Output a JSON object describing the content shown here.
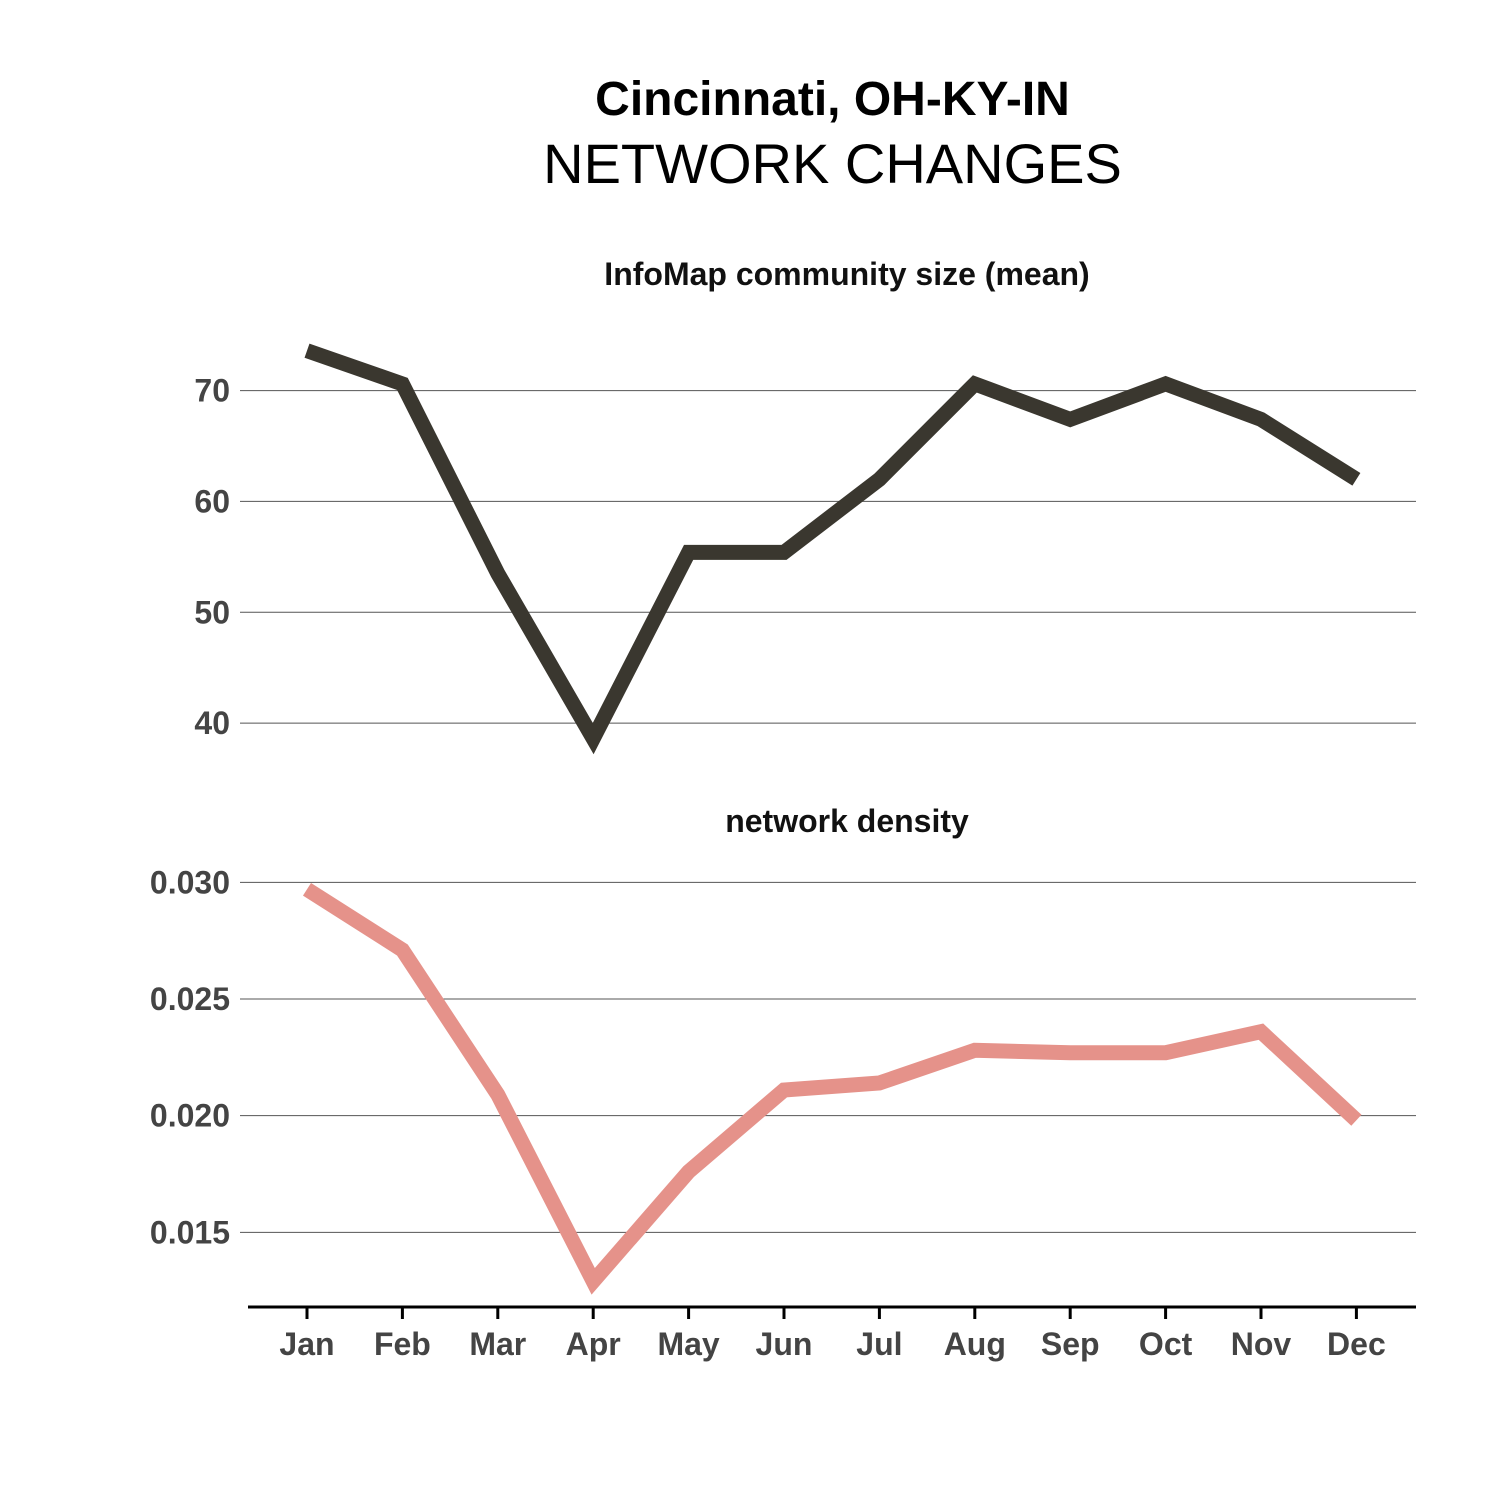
{
  "header": {
    "title": "Cincinnati, OH-KY-IN",
    "subtitle": "NETWORK CHANGES"
  },
  "chart_data": [
    {
      "type": "line",
      "title": "InfoMap community size (mean)",
      "categories": [
        "Jan",
        "Feb",
        "Mar",
        "Apr",
        "May",
        "Jun",
        "Jul",
        "Aug",
        "Sep",
        "Oct",
        "Nov",
        "Dec"
      ],
      "series": [
        {
          "values": [
            73.6,
            70.6,
            53.5,
            38.6,
            55.4,
            55.4,
            62.0,
            70.6,
            67.4,
            70.6,
            67.4,
            62.0
          ],
          "color": "#3a372f"
        }
      ],
      "yticks": [
        40,
        50,
        60,
        70
      ],
      "ylim": [
        35.5,
        77
      ],
      "grid": true
    },
    {
      "type": "line",
      "title": "network density",
      "categories": [
        "Jan",
        "Feb",
        "Mar",
        "Apr",
        "May",
        "Jun",
        "Jul",
        "Aug",
        "Sep",
        "Oct",
        "Nov",
        "Dec"
      ],
      "series": [
        {
          "values": [
            0.0297,
            0.0271,
            0.0209,
            0.0129,
            0.0176,
            0.0211,
            0.0214,
            0.0228,
            0.0227,
            0.0227,
            0.0236,
            0.0198
          ],
          "color": "#e5928a"
        }
      ],
      "yticks": [
        "0.015",
        "0.020",
        "0.025",
        "0.030"
      ],
      "ylim": [
        0.0121,
        0.0316
      ],
      "grid": true
    }
  ]
}
